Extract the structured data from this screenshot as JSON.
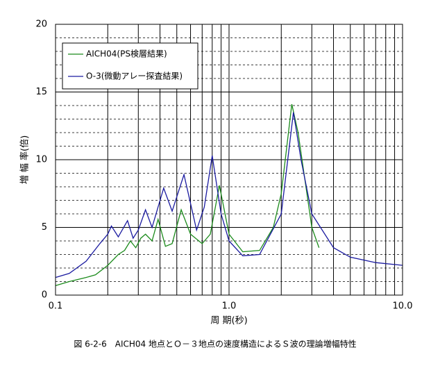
{
  "chart_data": {
    "type": "line",
    "caption": "図 6-2-6　AICH04 地点とＯ－３地点の速度構造によるＳ波の理論増幅特性",
    "x_label": "周 期(秒)",
    "y_label": "増 幅 率(倍)",
    "xscale": "log",
    "xlim": [
      0.1,
      10
    ],
    "ylim": [
      0,
      20
    ],
    "xticks": [
      {
        "value": 0.1,
        "label": "0.1"
      },
      {
        "value": 1,
        "label": "1.0"
      },
      {
        "value": 10,
        "label": "10.0"
      }
    ],
    "yticks": [
      0,
      5,
      10,
      15,
      20
    ],
    "grid": true,
    "legend": "upper left",
    "series": [
      {
        "name": "AICH04(PS検層結果)",
        "color": "#1a8a1a",
        "x": [
          0.1,
          0.12,
          0.15,
          0.17,
          0.2,
          0.23,
          0.25,
          0.27,
          0.29,
          0.31,
          0.33,
          0.36,
          0.39,
          0.43,
          0.47,
          0.53,
          0.6,
          0.7,
          0.78,
          0.88,
          1.0,
          1.2,
          1.5,
          1.8,
          2.0,
          2.3,
          2.5,
          3.0,
          3.3
        ],
        "values": [
          0.7,
          1.0,
          1.3,
          1.5,
          2.2,
          3.0,
          3.3,
          4.0,
          3.5,
          4.2,
          4.5,
          4.0,
          5.6,
          3.6,
          3.8,
          6.3,
          4.5,
          3.8,
          4.5,
          8.1,
          4.5,
          3.2,
          3.3,
          5.0,
          7.5,
          14.1,
          12.0,
          5.0,
          3.5
        ]
      },
      {
        "name": "O-3(微動アレー探査結果)",
        "color": "#1a1aa0",
        "x": [
          0.1,
          0.12,
          0.15,
          0.18,
          0.2,
          0.21,
          0.23,
          0.26,
          0.28,
          0.3,
          0.33,
          0.36,
          0.42,
          0.47,
          0.55,
          0.65,
          0.72,
          0.8,
          0.9,
          1.0,
          1.2,
          1.5,
          2.0,
          2.35,
          2.6,
          3.0,
          4.0,
          5.0,
          7.0,
          10.0
        ],
        "values": [
          1.3,
          1.6,
          2.5,
          3.8,
          4.5,
          5.1,
          4.3,
          5.5,
          4.2,
          4.8,
          6.3,
          5.0,
          7.9,
          6.2,
          8.9,
          4.8,
          6.5,
          10.3,
          6.0,
          4.0,
          2.9,
          3.0,
          6.0,
          13.5,
          10.0,
          6.0,
          3.5,
          2.8,
          2.4,
          2.2
        ]
      }
    ]
  }
}
